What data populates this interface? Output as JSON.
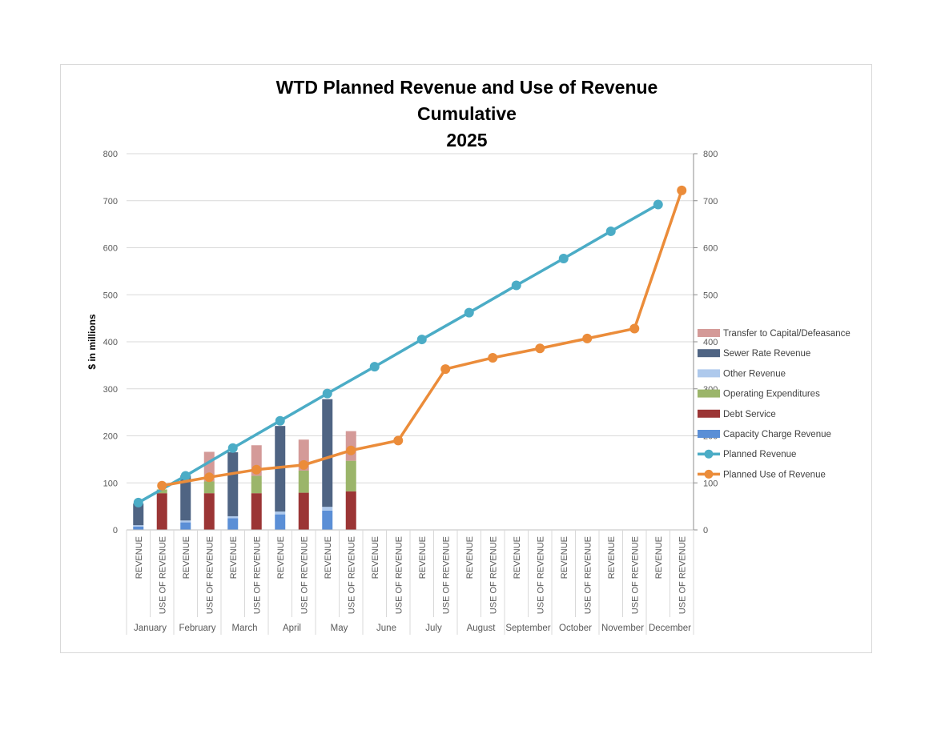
{
  "chart_data": {
    "type": "bar",
    "title_lines": [
      "WTD Planned Revenue and Use of Revenue",
      "Cumulative",
      "2025"
    ],
    "ylabel": "$ in millions",
    "ylim": [
      0,
      800
    ],
    "yticks": [
      0,
      100,
      200,
      300,
      400,
      500,
      600,
      700,
      800
    ],
    "y2ticks": [
      0,
      100,
      200,
      300,
      400,
      500,
      600,
      700,
      800
    ],
    "grid": true,
    "legend_position": "right",
    "months": [
      "January",
      "February",
      "March",
      "April",
      "May",
      "June",
      "July",
      "August",
      "September",
      "October",
      "November",
      "December"
    ],
    "sub_categories": [
      "REVENUE",
      "USE OF REVENUE"
    ],
    "stack_series": [
      {
        "name": "Capacity Charge Revenue",
        "color": "#5b8fd6",
        "bar": "REVENUE",
        "values": [
          7,
          16,
          25,
          33,
          41,
          null,
          null,
          null,
          null,
          null,
          null,
          null
        ]
      },
      {
        "name": "Other Revenue",
        "color": "#aec9ec",
        "bar": "REVENUE",
        "values": [
          3,
          4,
          4,
          6,
          8,
          null,
          null,
          null,
          null,
          null,
          null,
          null
        ]
      },
      {
        "name": "Sewer Rate Revenue",
        "color": "#4f6483",
        "bar": "REVENUE",
        "values": [
          46,
          96,
          136,
          182,
          229,
          null,
          null,
          null,
          null,
          null,
          null,
          null
        ]
      },
      {
        "name": "Debt Service",
        "color": "#9b3535",
        "bar": "USE OF REVENUE",
        "values": [
          78,
          78,
          78,
          79,
          82,
          null,
          null,
          null,
          null,
          null,
          null,
          null
        ]
      },
      {
        "name": "Operating Expenditures",
        "color": "#9bb56a",
        "bar": "USE OF REVENUE",
        "values": [
          8,
          25,
          37,
          47,
          65,
          null,
          null,
          null,
          null,
          null,
          null,
          null
        ]
      },
      {
        "name": "Transfer to Capital/Defeasance",
        "color": "#d49a98",
        "bar": "USE OF REVENUE",
        "values": [
          0,
          63,
          65,
          66,
          63,
          null,
          null,
          null,
          null,
          null,
          null,
          null
        ]
      }
    ],
    "line_series": [
      {
        "name": "Planned Revenue",
        "color": "#4bacc6",
        "bar": "REVENUE",
        "values": [
          58,
          115,
          174,
          232,
          290,
          347,
          405,
          462,
          520,
          577,
          635,
          692
        ]
      },
      {
        "name": "Planned Use of Revenue",
        "color": "#eb8c3a",
        "bar": "USE OF REVENUE",
        "values": [
          94,
          112,
          128,
          138,
          169,
          190,
          342,
          366,
          386,
          407,
          428,
          722
        ]
      }
    ],
    "legend_order": [
      "Transfer to Capital/Defeasance",
      "Sewer Rate Revenue",
      "Other Revenue",
      "Operating Expenditures",
      "Debt Service",
      "Capacity Charge Revenue",
      "Planned Revenue",
      "Planned Use of Revenue"
    ]
  }
}
